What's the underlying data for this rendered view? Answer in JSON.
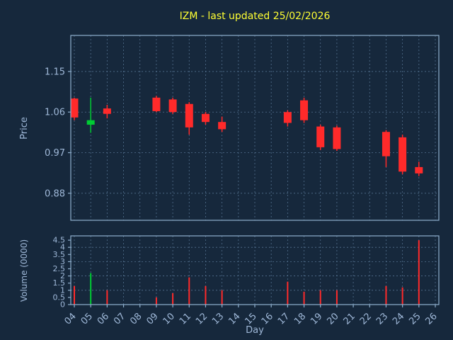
{
  "title": "IZM - last updated 25/02/2026",
  "colors": {
    "background": "#16283c",
    "title": "#ffff33",
    "label": "#9fb8d8",
    "spine": "#8fafcd",
    "grid": "#53708e",
    "up": "#00cc33",
    "down": "#ff2a2a"
  },
  "chart_data": {
    "type": "candlestick",
    "title": "IZM - last updated 25/02/2026",
    "xlabel": "Day",
    "legend": "none",
    "grid": "dashed",
    "x_categories": [
      "04",
      "05",
      "06",
      "07",
      "08",
      "09",
      "10",
      "11",
      "12",
      "13",
      "14",
      "15",
      "16",
      "17",
      "18",
      "19",
      "20",
      "21",
      "22",
      "23",
      "24",
      "25",
      "26"
    ],
    "price": {
      "ylabel": "Price",
      "yticks": [
        0.88,
        0.97,
        1.06,
        1.15
      ],
      "ylim": [
        0.82,
        1.23
      ],
      "candles": [
        {
          "day": "04",
          "open": 1.09,
          "high": 1.092,
          "low": 1.042,
          "close": 1.048,
          "direction": "down"
        },
        {
          "day": "05",
          "open": 1.032,
          "high": 1.092,
          "low": 1.014,
          "close": 1.042,
          "direction": "up"
        },
        {
          "day": "06",
          "open": 1.068,
          "high": 1.076,
          "low": 1.046,
          "close": 1.056,
          "direction": "down"
        },
        {
          "day": "09",
          "open": 1.092,
          "high": 1.096,
          "low": 1.06,
          "close": 1.062,
          "direction": "down"
        },
        {
          "day": "10",
          "open": 1.088,
          "high": 1.092,
          "low": 1.056,
          "close": 1.06,
          "direction": "down"
        },
        {
          "day": "11",
          "open": 1.078,
          "high": 1.082,
          "low": 1.01,
          "close": 1.026,
          "direction": "down"
        },
        {
          "day": "12",
          "open": 1.056,
          "high": 1.06,
          "low": 1.032,
          "close": 1.038,
          "direction": "down"
        },
        {
          "day": "13",
          "open": 1.038,
          "high": 1.05,
          "low": 1.016,
          "close": 1.022,
          "direction": "down"
        },
        {
          "day": "17",
          "open": 1.06,
          "high": 1.064,
          "low": 1.028,
          "close": 1.036,
          "direction": "down"
        },
        {
          "day": "18",
          "open": 1.086,
          "high": 1.092,
          "low": 1.036,
          "close": 1.042,
          "direction": "down"
        },
        {
          "day": "19",
          "open": 1.028,
          "high": 1.032,
          "low": 0.976,
          "close": 0.982,
          "direction": "down"
        },
        {
          "day": "20",
          "open": 1.026,
          "high": 1.03,
          "low": 0.974,
          "close": 0.978,
          "direction": "down"
        },
        {
          "day": "23",
          "open": 1.016,
          "high": 1.02,
          "low": 0.938,
          "close": 0.962,
          "direction": "down"
        },
        {
          "day": "24",
          "open": 1.004,
          "high": 1.01,
          "low": 0.922,
          "close": 0.928,
          "direction": "down"
        },
        {
          "day": "25",
          "open": 0.938,
          "high": 0.95,
          "low": 0.918,
          "close": 0.924,
          "direction": "down"
        }
      ]
    },
    "volume": {
      "ylabel": "Volume (0000)",
      "yticks": [
        0,
        0.5,
        1,
        1.5,
        2,
        2.5,
        3,
        3.5,
        4,
        4.5
      ],
      "ylim": [
        0,
        4.8
      ],
      "bars": [
        {
          "day": "04",
          "value": 1.3,
          "direction": "down"
        },
        {
          "day": "05",
          "value": 2.2,
          "direction": "up"
        },
        {
          "day": "06",
          "value": 1.0,
          "direction": "down"
        },
        {
          "day": "09",
          "value": 0.5,
          "direction": "down"
        },
        {
          "day": "10",
          "value": 0.8,
          "direction": "down"
        },
        {
          "day": "11",
          "value": 1.9,
          "direction": "down"
        },
        {
          "day": "12",
          "value": 1.3,
          "direction": "down"
        },
        {
          "day": "13",
          "value": 1.0,
          "direction": "down"
        },
        {
          "day": "17",
          "value": 1.6,
          "direction": "down"
        },
        {
          "day": "18",
          "value": 0.9,
          "direction": "down"
        },
        {
          "day": "19",
          "value": 1.0,
          "direction": "down"
        },
        {
          "day": "20",
          "value": 1.0,
          "direction": "down"
        },
        {
          "day": "23",
          "value": 1.3,
          "direction": "down"
        },
        {
          "day": "24",
          "value": 1.2,
          "direction": "down"
        },
        {
          "day": "25",
          "value": 4.5,
          "direction": "down"
        }
      ]
    }
  }
}
